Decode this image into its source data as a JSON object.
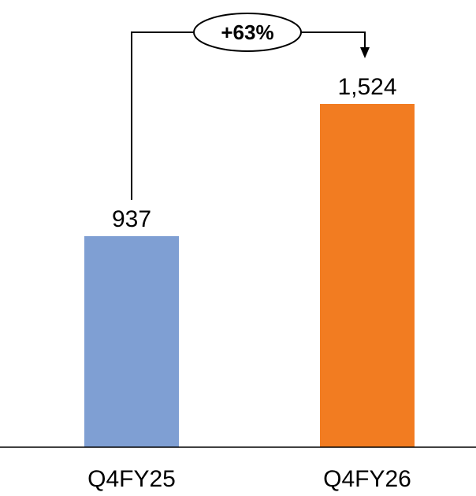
{
  "chart_data": {
    "type": "bar",
    "title": "",
    "xlabel": "",
    "ylabel": "",
    "categories": [
      "Q4FY25",
      "Q4FY26"
    ],
    "values": [
      937,
      1524
    ],
    "value_labels": [
      "937",
      "1,524"
    ],
    "colors": [
      "#7f9fd3",
      "#f27c21"
    ],
    "ylim": [
      0,
      1790
    ],
    "grid": false,
    "legend": "none",
    "annotation": {
      "text": "+63%",
      "from": "Q4FY25",
      "to": "Q4FY26"
    }
  }
}
